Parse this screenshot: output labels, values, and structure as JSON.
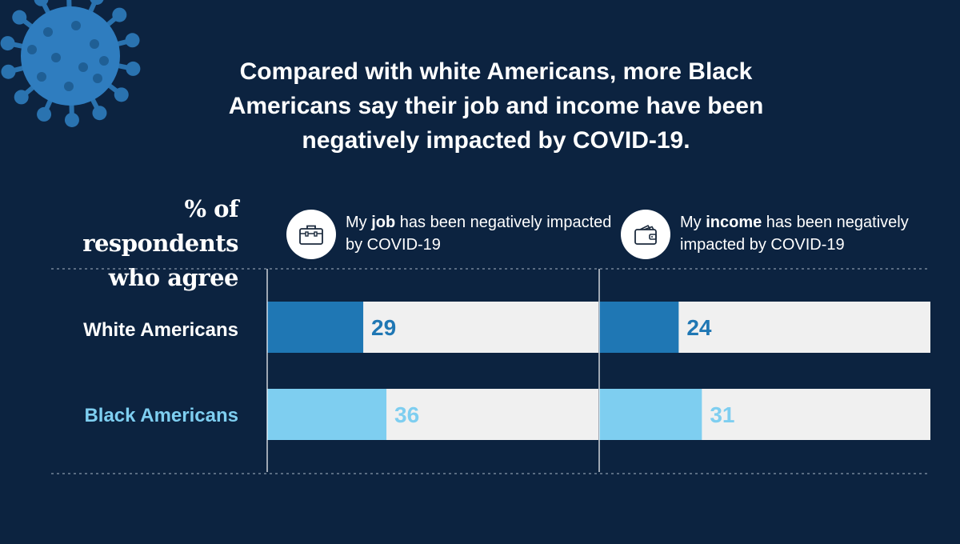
{
  "title": "Compared with white Americans, more Black Americans say their job and income have been negatively impacted by COVID-19.",
  "metric_label": "% of respondents who agree",
  "colors": {
    "background": "#0c2340",
    "white_series": "#1f77b4",
    "black_series": "#7ecef0",
    "track": "#f0f0f0"
  },
  "panels": [
    {
      "icon": "briefcase-icon",
      "text_before": "My ",
      "emphasis": "job",
      "text_after": " has been negatively impacted by COVID-19"
    },
    {
      "icon": "wallet-icon",
      "text_before": "My ",
      "emphasis": "income",
      "text_after": " has been negatively impacted by COVID-19"
    }
  ],
  "chart_data": {
    "type": "bar",
    "orientation": "horizontal",
    "title": "Compared with white Americans, more Black Americans say their job and income have been negatively impacted by COVID-19.",
    "ylabel": "% of respondents who agree",
    "categories": [
      "White Americans",
      "Black Americans"
    ],
    "panels": [
      "My job has been negatively impacted by COVID-19",
      "My income has been negatively impacted by COVID-19"
    ],
    "series": [
      {
        "name": "White Americans",
        "values": [
          29,
          24
        ]
      },
      {
        "name": "Black Americans",
        "values": [
          36,
          31
        ]
      }
    ],
    "xlim": [
      0,
      100
    ],
    "grid": false,
    "legend": "none"
  }
}
